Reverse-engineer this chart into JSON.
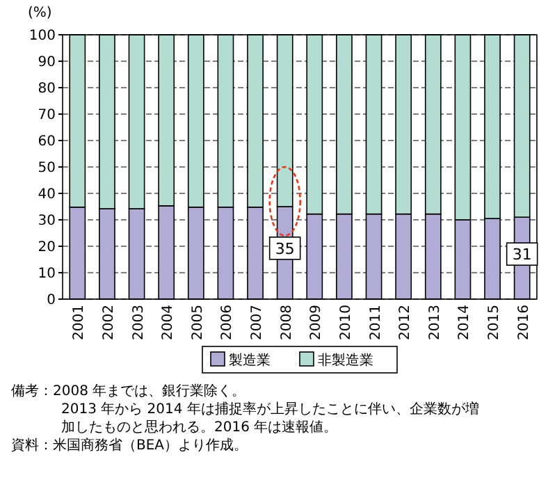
{
  "chart_data": {
    "type": "bar",
    "stacked": true,
    "ylabel": "(%)",
    "categories": [
      "2001",
      "2002",
      "2003",
      "2004",
      "2005",
      "2006",
      "2007",
      "2008",
      "2009",
      "2010",
      "2011",
      "2012",
      "2013",
      "2014",
      "2015",
      "2016"
    ],
    "series": [
      {
        "name": "製造業",
        "color": "#b0acd6",
        "values": [
          34.8,
          34.2,
          34.2,
          35.3,
          34.8,
          34.8,
          34.8,
          35,
          32.2,
          32.2,
          32.2,
          32.2,
          32.2,
          30,
          30.5,
          31
        ],
        "value_labels": [
          null,
          null,
          null,
          null,
          null,
          null,
          null,
          "35",
          null,
          null,
          null,
          null,
          null,
          null,
          null,
          "31"
        ]
      },
      {
        "name": "非製造業",
        "color": "#b3ddd3",
        "values": [
          65.2,
          65.8,
          65.8,
          64.7,
          65.2,
          65.2,
          65.2,
          65,
          67.8,
          67.8,
          67.8,
          67.8,
          67.8,
          70,
          69.5,
          69
        ]
      }
    ],
    "ylim": [
      0,
      100
    ],
    "yticks": [
      0,
      10,
      20,
      30,
      40,
      50,
      60,
      70,
      80,
      90,
      100
    ],
    "grid": "y",
    "legend": "bottom",
    "annotations": [
      "備考：2008 年までは、銀行業除く。",
      "2013 年から 2014 年は捕捉率が上昇したことに伴い、企業数が増",
      "加したものと思われる。2016 年は速報値。",
      "資料：米国商務省（BEA）より作成。"
    ]
  }
}
